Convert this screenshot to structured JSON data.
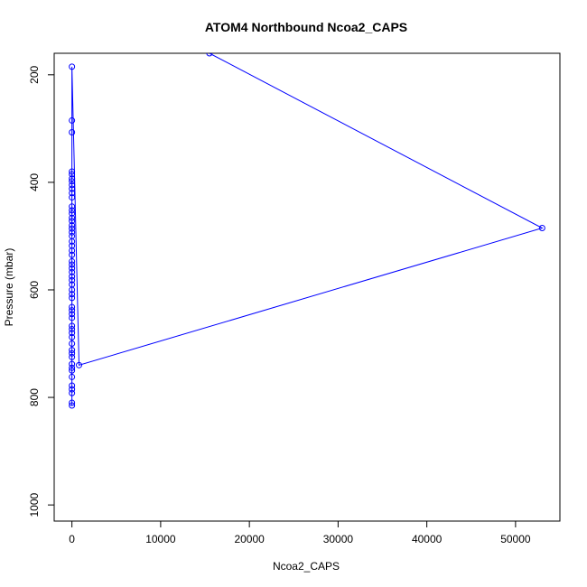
{
  "chart_data": {
    "type": "scatter",
    "title": "ATOM4 Northbound Ncoa2_CAPS",
    "xlabel": "Ncoa2_CAPS",
    "ylabel": "Pressure (mbar)",
    "xlim": [
      -2000,
      55000
    ],
    "ylim": [
      1030,
      160
    ],
    "y_reversed": true,
    "grid": false,
    "x_ticks": [
      0,
      10000,
      20000,
      30000,
      40000,
      50000
    ],
    "x_tick_labels": [
      "0",
      "10000",
      "20000",
      "30000",
      "40000",
      "50000"
    ],
    "y_ticks": [
      200,
      400,
      600,
      800,
      1000
    ],
    "y_tick_labels": [
      "200",
      "400",
      "600",
      "800",
      "1000"
    ],
    "series": [
      {
        "color": "#0000ff",
        "style": "points+line",
        "points": [
          [
            15500,
            160
          ],
          [
            53000,
            485
          ],
          [
            800,
            740
          ],
          [
            0,
            185
          ],
          [
            0,
            285
          ],
          [
            0,
            307
          ],
          [
            0,
            380
          ],
          [
            0,
            385
          ],
          [
            0,
            393
          ],
          [
            0,
            398
          ],
          [
            0,
            405
          ],
          [
            0,
            412
          ],
          [
            0,
            420
          ],
          [
            0,
            428
          ],
          [
            0,
            445
          ],
          [
            0,
            452
          ],
          [
            0,
            458
          ],
          [
            0,
            466
          ],
          [
            0,
            472
          ],
          [
            0,
            480
          ],
          [
            0,
            486
          ],
          [
            0,
            493
          ],
          [
            0,
            500
          ],
          [
            0,
            510
          ],
          [
            0,
            518
          ],
          [
            0,
            527
          ],
          [
            0,
            535
          ],
          [
            0,
            547
          ],
          [
            0,
            553
          ],
          [
            0,
            560
          ],
          [
            0,
            567
          ],
          [
            0,
            575
          ],
          [
            0,
            582
          ],
          [
            0,
            590
          ],
          [
            0,
            600
          ],
          [
            0,
            608
          ],
          [
            0,
            615
          ],
          [
            0,
            632
          ],
          [
            0,
            638
          ],
          [
            0,
            645
          ],
          [
            0,
            652
          ],
          [
            0,
            667
          ],
          [
            0,
            673
          ],
          [
            0,
            680
          ],
          [
            0,
            688
          ],
          [
            0,
            700
          ],
          [
            0,
            712
          ],
          [
            0,
            718
          ],
          [
            0,
            725
          ],
          [
            0,
            738
          ],
          [
            0,
            745
          ],
          [
            0,
            750
          ],
          [
            0,
            762
          ],
          [
            0,
            778
          ],
          [
            0,
            785
          ],
          [
            0,
            792
          ],
          [
            0,
            810
          ],
          [
            0,
            815
          ]
        ]
      }
    ]
  }
}
